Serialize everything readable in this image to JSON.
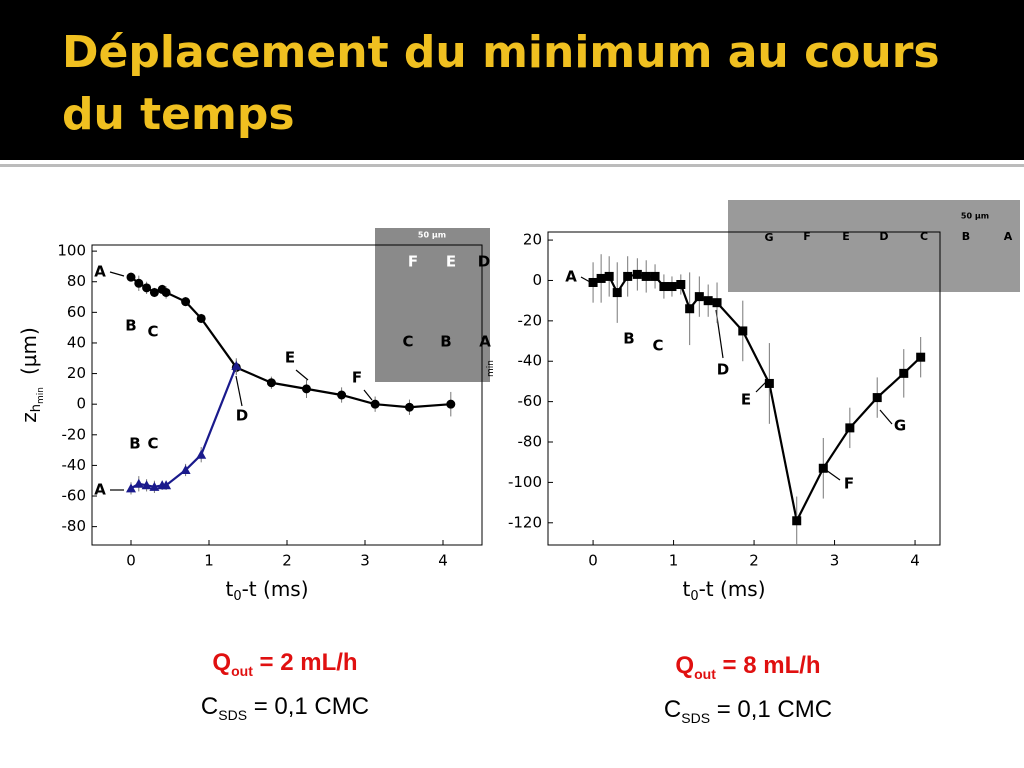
{
  "slide": {
    "title": "Déplacement du minimum au cours du temps",
    "captions": [
      {
        "q": "Q",
        "q_sub": "out",
        "q_rest": "= 2 mL/h",
        "c": "C",
        "c_sub": "SDS",
        "c_rest": "= 0,1 CMC"
      },
      {
        "q": "Q",
        "q_sub": "out",
        "q_rest": "= 8 mL/h",
        "c": "C",
        "c_sub": "SDS",
        "c_rest": "= 0,1 CMC"
      }
    ]
  },
  "inserts": [
    {
      "scale": "50 µm",
      "labels": [
        "F",
        "E",
        "D",
        "C",
        "B",
        "A"
      ]
    },
    {
      "scale": "50 µm",
      "labels": [
        "G",
        "F",
        "E",
        "D",
        "C",
        "B",
        "A"
      ]
    }
  ],
  "chart_data": [
    {
      "type": "line",
      "x_label": "t",
      "x_label_sub": "0",
      "x_label_rest": "-t (ms)",
      "y_label": "z",
      "y_label_sub": "h",
      "y_label_subsub": "min",
      "y_label_rest": "(µm)",
      "xlim": [
        -0.5,
        4.5
      ],
      "ylim": [
        -92,
        104
      ],
      "xticks": [
        0,
        1,
        2,
        3,
        4
      ],
      "yticks": [
        -80,
        -60,
        -40,
        -20,
        0,
        20,
        40,
        60,
        80,
        100
      ],
      "series": [
        {
          "color": "#000000",
          "marker": "circle",
          "x": [
            0,
            0.1,
            0.2,
            0.3,
            0.4,
            0.45,
            0.7,
            0.9,
            1.35,
            1.8,
            2.25,
            2.7,
            3.13,
            3.57,
            4.1
          ],
          "values": [
            83,
            79,
            76,
            73,
            75,
            73,
            67,
            56,
            24,
            14,
            10,
            6,
            0,
            -2,
            0
          ],
          "errors": [
            3,
            5,
            4,
            3,
            3,
            4,
            3,
            3,
            5,
            4,
            6,
            5,
            5,
            5,
            8
          ]
        },
        {
          "color": "#1a1a8c",
          "marker": "triangle",
          "x": [
            0,
            0.1,
            0.2,
            0.3,
            0.4,
            0.45,
            0.7,
            0.9,
            1.35
          ],
          "values": [
            -55,
            -52,
            -53,
            -54,
            -53,
            -53,
            -43,
            -33,
            25
          ],
          "errors": [
            4,
            5,
            4,
            4,
            3,
            3,
            4,
            5,
            5
          ]
        }
      ],
      "annotations": [
        "A",
        "B",
        "C",
        "A",
        "B",
        "C",
        "D",
        "E",
        "F"
      ]
    },
    {
      "type": "line",
      "x_label": "t",
      "x_label_sub": "0",
      "x_label_rest": "-t (ms)",
      "y_label_subsub": "min",
      "xlim": [
        -0.56,
        4.31
      ],
      "ylim": [
        -131,
        24
      ],
      "xticks": [
        0,
        1,
        2,
        3,
        4
      ],
      "yticks": [
        -120,
        -100,
        -80,
        -60,
        -40,
        -20,
        0,
        20
      ],
      "series": [
        {
          "color": "#000000",
          "marker": "square",
          "x": [
            0,
            0.1,
            0.2,
            0.3,
            0.43,
            0.55,
            0.66,
            0.77,
            0.88,
            0.98,
            1.09,
            1.2,
            1.32,
            1.43,
            1.54,
            1.86,
            2.19,
            2.53,
            2.86,
            3.19,
            3.53,
            3.86,
            4.07
          ],
          "values": [
            -1,
            1,
            2,
            -6,
            2,
            3,
            2,
            2,
            -3,
            -3,
            -2,
            -14,
            -8,
            -10,
            -11,
            -25,
            -51,
            -119,
            -93,
            -73,
            -58,
            -46,
            -38
          ],
          "errors": [
            10,
            12,
            10,
            15,
            10,
            8,
            8,
            6,
            6,
            5,
            5,
            18,
            10,
            8,
            10,
            15,
            20,
            12,
            15,
            10,
            10,
            12,
            10
          ]
        }
      ],
      "annotations": [
        "A",
        "B",
        "C",
        "D",
        "E",
        "F",
        "G"
      ]
    }
  ]
}
